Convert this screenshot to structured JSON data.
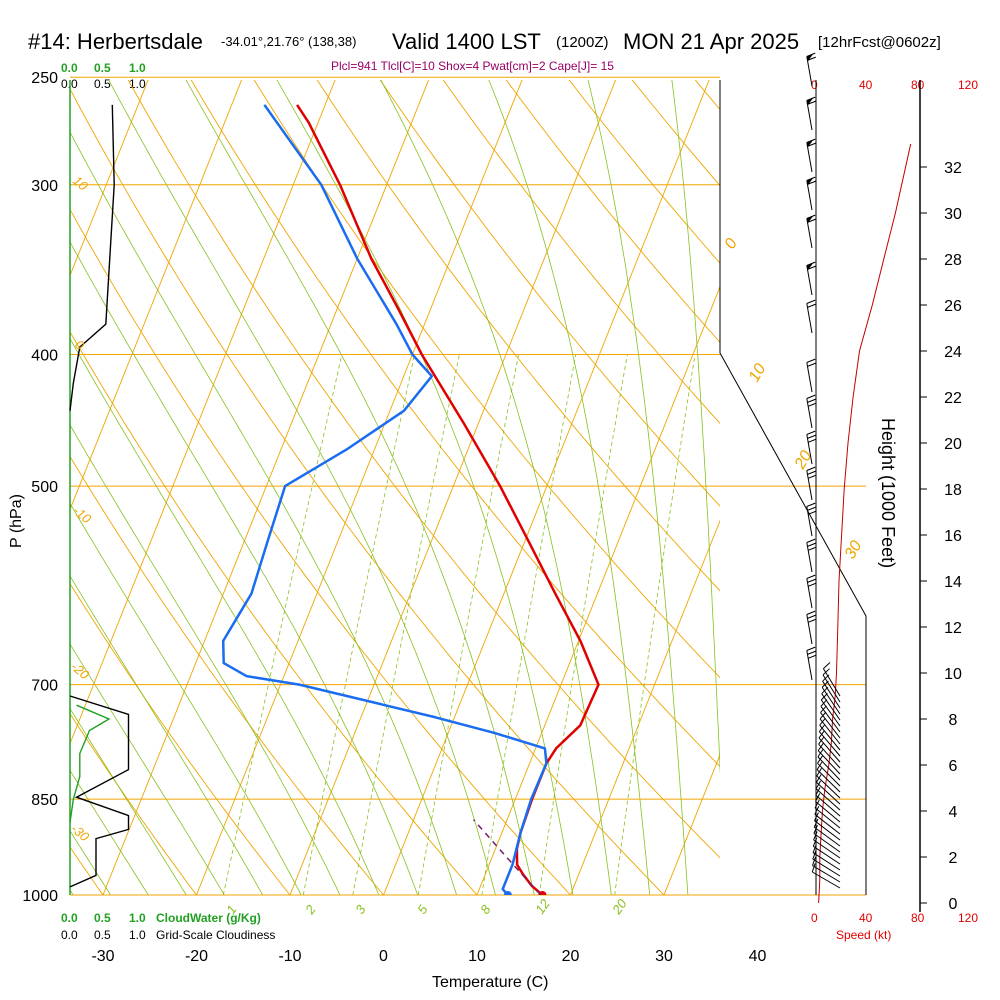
{
  "header": {
    "station": "#14: Herbertsdale",
    "coords": "-34.01°,21.76° (138,38)",
    "valid": "Valid 1400 LST",
    "utc": "(1200Z)",
    "date": "MON 21 Apr 2025",
    "forecast": "[12hrFcst@0602z]",
    "indices": "Plcl=941 Tlcl[C]=10 Shox=4 Pwat[cm]=2 Cape[J]= 15"
  },
  "cloud_scale": {
    "cloudwater_ticks": [
      "0.0",
      "0.5",
      "1.0"
    ],
    "cloudiness_ticks": [
      "0.0",
      "0.5",
      "1.0"
    ],
    "cloudwater_label": "CloudWater (g/Kg)",
    "cloudiness_label": "Grid-Scale Cloudiness"
  },
  "speed_scale": {
    "ticks": [
      "0",
      "40",
      "80",
      "120"
    ],
    "label": "Speed (kt)"
  },
  "colors": {
    "temperature": "#e00000",
    "dewpoint": "#1a6cf0",
    "isotherm": "#f0a500",
    "dry_adiabat": "#f0a500",
    "moist_adiabat": "#88c020",
    "mixing_ratio": "#88c020",
    "cloudwater": "#22a022",
    "cloudiness": "#000000",
    "speed": "#c00000",
    "title_index": "#990066"
  },
  "chart_data": {
    "type": "line",
    "xlabel": "Temperature (C)",
    "ylabel": "P (hPa)",
    "y2label": "Height (1000 Feet)",
    "x_ticks": [
      -30,
      -20,
      -10,
      0,
      10,
      20,
      30,
      40
    ],
    "pressure_ticks": [
      250,
      300,
      400,
      500,
      700,
      850,
      1000
    ],
    "height_ticks": [
      0,
      2,
      4,
      6,
      8,
      10,
      12,
      14,
      16,
      18,
      20,
      22,
      24,
      26,
      28,
      30,
      32
    ],
    "y_scale": "log",
    "ylim": [
      1000,
      250
    ],
    "isopleth_labels": {
      "isotherms": [
        "0",
        "10",
        "20",
        "30"
      ],
      "dry_adiabats": [
        "10",
        "0",
        "-10",
        "-20",
        "-30"
      ],
      "mixing_ratio": [
        "1",
        "2",
        "3",
        "5",
        "8",
        "12",
        "20"
      ]
    },
    "series": [
      {
        "name": "Temperature",
        "pressure": [
          1000,
          985,
          965,
          950,
          925,
          900,
          850,
          800,
          780,
          750,
          700,
          650,
          600,
          550,
          500,
          450,
          400,
          370,
          340,
          300,
          270,
          262
        ],
        "values": [
          17,
          15.5,
          14,
          13,
          12.3,
          12.0,
          11.8,
          11.8,
          12.2,
          13.8,
          14.0,
          10.2,
          5.5,
          0.5,
          -5.0,
          -11.5,
          -19.0,
          -23.5,
          -28.5,
          -35.0,
          -41.0,
          -43.0
        ]
      },
      {
        "name": "Dew point",
        "pressure": [
          1000,
          990,
          950,
          900,
          850,
          800,
          780,
          760,
          740,
          700,
          690,
          675,
          650,
          600,
          550,
          500,
          470,
          440,
          415,
          400,
          380,
          340,
          300,
          262
        ],
        "values": [
          13.3,
          12.5,
          12.5,
          12.0,
          11.7,
          11.8,
          11.0,
          5.0,
          -2.0,
          -18.0,
          -24.0,
          -27.0,
          -28.0,
          -27.0,
          -27.5,
          -28.0,
          -23.0,
          -18.5,
          -17.0,
          -20.0,
          -23.0,
          -30.0,
          -37.0,
          -46.5
        ]
      },
      {
        "name": "Cloudiness",
        "height_kft": [
          0.7,
          1.2,
          2.8,
          3.2,
          3.8,
          4.6,
          5.8,
          7.0,
          8.2,
          9.0
        ],
        "values": [
          0.0,
          0.4,
          0.4,
          0.9,
          0.9,
          0.1,
          0.9,
          0.9,
          0.9,
          0.0
        ]
      },
      {
        "name": "CloudWater",
        "height_kft": [
          3.5,
          4.5,
          5.5,
          6.5,
          7.5,
          8.0,
          8.6
        ],
        "values": [
          0.0,
          0.05,
          0.15,
          0.15,
          0.3,
          0.6,
          0.1
        ]
      },
      {
        "name": "Speed",
        "height_kft": [
          0,
          1,
          2,
          3,
          4,
          5,
          6,
          7,
          8,
          9,
          10,
          12,
          14,
          16,
          18,
          20,
          22,
          24,
          26,
          28,
          30,
          32,
          33
        ],
        "values": [
          2,
          3,
          3,
          4,
          5,
          7,
          10,
          12,
          13,
          15,
          16,
          17,
          18,
          20,
          22,
          25,
          29,
          34,
          44,
          53,
          62,
          70,
          74
        ]
      }
    ]
  }
}
